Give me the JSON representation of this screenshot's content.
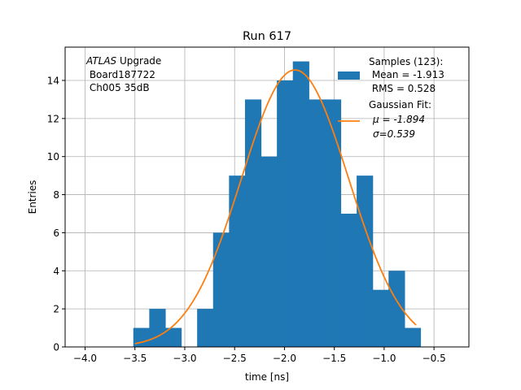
{
  "chart_data": {
    "type": "bar",
    "title": "Run 617",
    "xlabel": "time [ns]",
    "ylabel": "Entries",
    "xlim": [
      -4.2,
      -0.15
    ],
    "ylim": [
      0,
      15.75
    ],
    "xticks": [
      -4.0,
      -3.5,
      -3.0,
      -2.5,
      -2.0,
      -1.5,
      -1.0,
      -0.5
    ],
    "xtick_labels": [
      "−4.0",
      "−3.5",
      "−3.0",
      "−2.5",
      "−2.0",
      "−1.5",
      "−1.0",
      "−0.5"
    ],
    "yticks": [
      0,
      2,
      4,
      6,
      8,
      10,
      12,
      14
    ],
    "yticks_labels": [
      "0",
      "2",
      "4",
      "6",
      "8",
      "10",
      "12",
      "14"
    ],
    "grid": true,
    "legend_position": "top-right",
    "histogram": {
      "name": "Samples (123):",
      "color": "#1f77b4",
      "bin_edges": [
        -3.516,
        -3.356,
        -3.196,
        -3.036,
        -2.876,
        -2.716,
        -2.556,
        -2.396,
        -2.236,
        -2.076,
        -1.916,
        -1.756,
        -1.596,
        -1.436,
        -1.276,
        -1.116,
        -0.956,
        -0.796,
        -0.636
      ],
      "counts": [
        1,
        2,
        1,
        0,
        2,
        6,
        9,
        13,
        10,
        14,
        15,
        13,
        13,
        7,
        9,
        3,
        4,
        1
      ]
    },
    "fit": {
      "name": "Gaussian Fit:",
      "color": "#ff7f0e",
      "mu": -1.894,
      "sigma": 0.539,
      "amplitude": 14.55,
      "x_range": [
        -3.5,
        -0.68
      ]
    },
    "legend": {
      "samples_lines": [
        "Samples (123):",
        " Mean = -1.913",
        " RMS = 0.528"
      ],
      "fit_lines": [
        "Gaussian Fit:",
        "μ = -1.894",
        "σ=0.539"
      ]
    },
    "annotation": {
      "italic_word": "ATLAS",
      "rest_first_line": " Upgrade",
      "lines": [
        " Board187722",
        " Ch005 35dB"
      ]
    }
  }
}
